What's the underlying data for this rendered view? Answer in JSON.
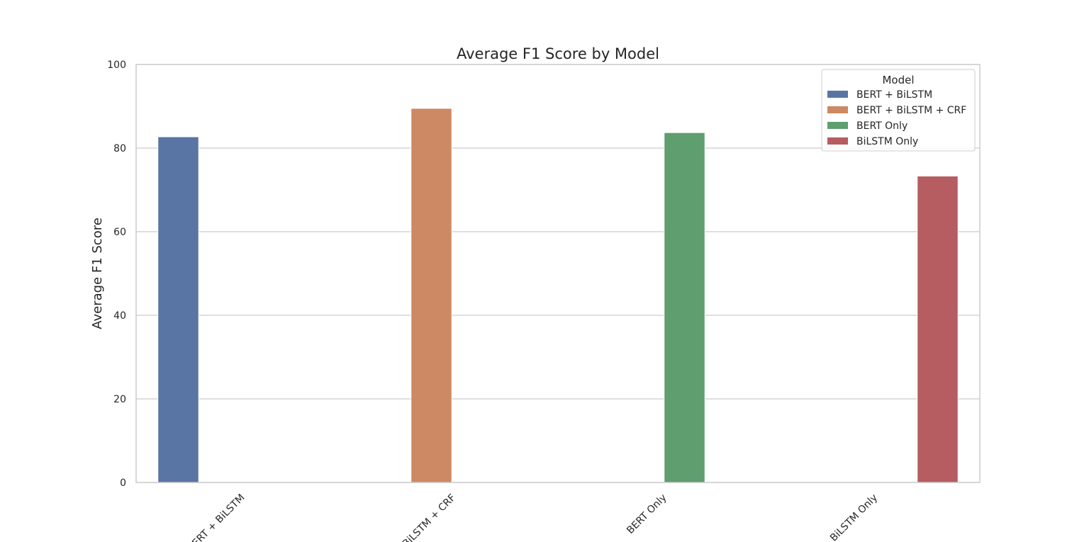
{
  "chart_data": {
    "type": "bar",
    "title": "Average F1 Score by Model",
    "xlabel": "",
    "ylabel": "Average F1 Score",
    "ylim": [
      0,
      100
    ],
    "yticks": [
      0,
      20,
      40,
      60,
      80,
      100
    ],
    "grid": "horizontal",
    "categories": [
      "BERT + BiLSTM",
      "BERT + BiLSTM + CRF",
      "BERT Only",
      "BiLSTM Only"
    ],
    "category_tick_labels_visible": [
      "ERT + BiLSTM",
      "BiLSTM + CRF",
      "BERT Only",
      "BiLSTM Only"
    ],
    "series": [
      {
        "name": "BERT + BiLSTM",
        "color": "#5975a4",
        "values": [
          82.7,
          null,
          null,
          null
        ]
      },
      {
        "name": "BERT + BiLSTM + CRF",
        "color": "#cc8963",
        "values": [
          null,
          89.5,
          null,
          null
        ]
      },
      {
        "name": "BERT Only",
        "color": "#5f9e6e",
        "values": [
          null,
          null,
          83.7,
          null
        ]
      },
      {
        "name": "BiLSTM Only",
        "color": "#b55d60",
        "values": [
          null,
          null,
          null,
          73.3
        ]
      }
    ],
    "legend": {
      "title": "Model",
      "placement": "top-right"
    }
  }
}
